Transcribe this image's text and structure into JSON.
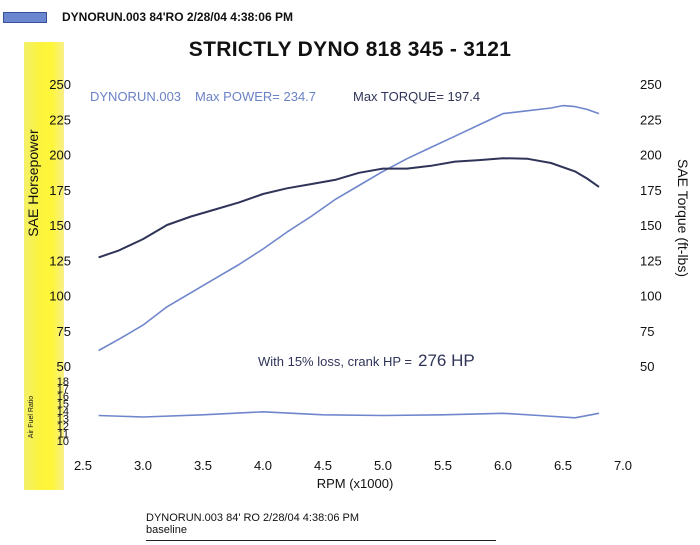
{
  "header": {
    "run_text": "DYNORUN.003   84'RO  2/28/04 4:38:06 PM"
  },
  "chart_data": {
    "type": "line",
    "title": "STRICTLY DYNO   818  345 - 3121",
    "legend_run": "DYNORUN.003",
    "legend_power": "Max POWER= 234.7",
    "legend_torque": "Max TORQUE= 197.4",
    "annotation_prefix": "With 15% loss, crank HP =",
    "annotation_value": "276 HP",
    "xlabel": "RPM (x1000)",
    "ylabel_left": "SAE Horsepower",
    "ylabel_right": "SAE Torque (ft-lbs)",
    "afr_label": "Air Fuel Ratio",
    "xlim": [
      2.5,
      7.0
    ],
    "ylim": [
      50,
      250
    ],
    "x_ticks": [
      "2.5",
      "3.0",
      "3.5",
      "4.0",
      "4.5",
      "5.0",
      "5.5",
      "6.0",
      "6.5",
      "7.0"
    ],
    "left_ticks": [
      "250",
      "225",
      "200",
      "175",
      "150",
      "125",
      "100",
      "75",
      "50"
    ],
    "right_ticks": [
      "250",
      "225",
      "200",
      "175",
      "150",
      "125",
      "100",
      "75",
      "50"
    ],
    "afr_ticks": [
      "18",
      "17",
      "16",
      "15",
      "14",
      "13",
      "12",
      "11",
      "10"
    ],
    "afr_ylim": [
      10,
      18
    ],
    "series": [
      {
        "name": "Max POWER= 234.7",
        "color": "#6f86cc",
        "x": [
          2.63,
          2.8,
          3.0,
          3.2,
          3.4,
          3.6,
          3.8,
          4.0,
          4.2,
          4.4,
          4.6,
          4.8,
          5.0,
          5.2,
          5.4,
          5.6,
          5.8,
          6.0,
          6.2,
          6.4,
          6.5,
          6.6,
          6.7,
          6.8
        ],
        "y": [
          61,
          69,
          79,
          92,
          102,
          112,
          122,
          133,
          145,
          156,
          168,
          178,
          188,
          197,
          205,
          213,
          221,
          229,
          231,
          233,
          234.7,
          234,
          232,
          229
        ]
      },
      {
        "name": "Max TORQUE= 197.4",
        "color": "#2f3458",
        "x": [
          2.63,
          2.8,
          3.0,
          3.2,
          3.4,
          3.6,
          3.8,
          4.0,
          4.2,
          4.4,
          4.6,
          4.8,
          5.0,
          5.2,
          5.4,
          5.6,
          5.8,
          6.0,
          6.2,
          6.4,
          6.6,
          6.7,
          6.8
        ],
        "y": [
          127,
          132,
          140,
          150,
          156,
          161,
          166,
          172,
          176,
          179,
          182,
          187,
          190,
          190,
          192,
          195,
          196,
          197.4,
          197,
          194,
          188,
          183,
          177
        ]
      },
      {
        "name": "Air Fuel Ratio",
        "color": "#6f86cc",
        "x": [
          2.63,
          3.0,
          3.5,
          4.0,
          4.5,
          5.0,
          5.5,
          6.0,
          6.3,
          6.6,
          6.8
        ],
        "y": [
          13.4,
          13.2,
          13.5,
          13.9,
          13.5,
          13.4,
          13.5,
          13.7,
          13.4,
          13.1,
          13.7
        ]
      }
    ]
  },
  "footer": {
    "line1": "DYNORUN.003   84'     RO     2/28/04 4:38:06 PM",
    "line2": "baseline"
  }
}
